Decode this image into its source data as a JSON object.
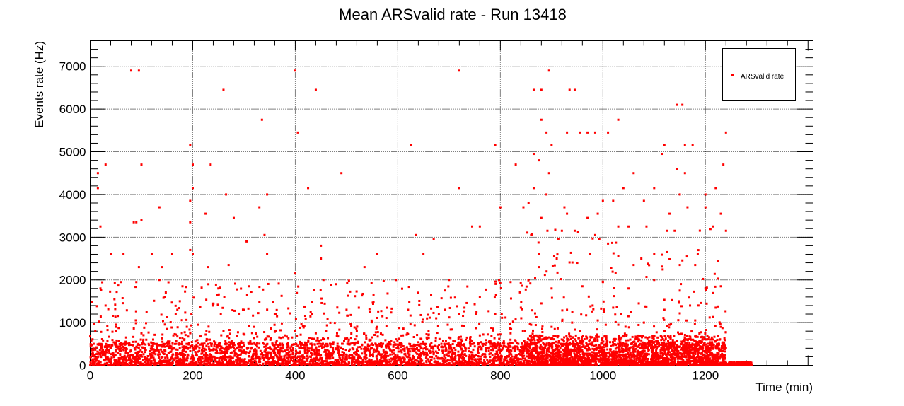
{
  "chart_data": {
    "type": "scatter",
    "title": "Mean ARSvalid rate - Run 13418",
    "xlabel": "Time (min)",
    "ylabel": "Events rate (Hz)",
    "xlim": [
      0,
      1410
    ],
    "ylim": [
      0,
      7600
    ],
    "x_ticks": [
      0,
      200,
      400,
      600,
      800,
      1000,
      1200
    ],
    "y_ticks": [
      0,
      1000,
      2000,
      3000,
      4000,
      5000,
      6000,
      7000
    ],
    "x_tick_labels": [
      "0",
      "200",
      "400",
      "600",
      "800",
      "1000",
      "1200"
    ],
    "y_tick_labels": [
      "0",
      "1000",
      "2000",
      "3000",
      "4000",
      "5000",
      "6000",
      "7000"
    ],
    "grid": true,
    "legend_position": "top-right",
    "series": [
      {
        "name": "ARSvalid rate",
        "color": "#ff0000",
        "marker": "square",
        "points": [
          [
            80,
            6900
          ],
          [
            95,
            6900
          ],
          [
            400,
            6900
          ],
          [
            720,
            6900
          ],
          [
            895,
            6900
          ],
          [
            260,
            6450
          ],
          [
            440,
            6450
          ],
          [
            865,
            6450
          ],
          [
            880,
            6450
          ],
          [
            935,
            6450
          ],
          [
            945,
            6450
          ],
          [
            1145,
            6100
          ],
          [
            1155,
            6100
          ],
          [
            335,
            5750
          ],
          [
            1030,
            5750
          ],
          [
            880,
            5750
          ],
          [
            405,
            5450
          ],
          [
            890,
            5450
          ],
          [
            930,
            5450
          ],
          [
            955,
            5450
          ],
          [
            970,
            5450
          ],
          [
            985,
            5450
          ],
          [
            1010,
            5450
          ],
          [
            1240,
            5450
          ],
          [
            195,
            5150
          ],
          [
            625,
            5150
          ],
          [
            790,
            5150
          ],
          [
            900,
            5150
          ],
          [
            1120,
            5150
          ],
          [
            1160,
            5150
          ],
          [
            1175,
            5150
          ],
          [
            15,
            4500
          ],
          [
            30,
            4700
          ],
          [
            100,
            4700
          ],
          [
            200,
            4700
          ],
          [
            235,
            4700
          ],
          [
            490,
            4500
          ],
          [
            830,
            4700
          ],
          [
            865,
            4950
          ],
          [
            875,
            4800
          ],
          [
            895,
            4500
          ],
          [
            1115,
            4950
          ],
          [
            1145,
            4600
          ],
          [
            1160,
            4500
          ],
          [
            1235,
            4700
          ],
          [
            15,
            4150
          ],
          [
            200,
            4150
          ],
          [
            265,
            4000
          ],
          [
            345,
            4000
          ],
          [
            425,
            4150
          ],
          [
            720,
            4150
          ],
          [
            865,
            4150
          ],
          [
            890,
            4000
          ],
          [
            1000,
            3850
          ],
          [
            1020,
            3850
          ],
          [
            1040,
            4150
          ],
          [
            1060,
            4500
          ],
          [
            1100,
            4150
          ],
          [
            1150,
            4000
          ],
          [
            1200,
            4000
          ],
          [
            1220,
            4150
          ],
          [
            135,
            3700
          ],
          [
            195,
            3850
          ],
          [
            225,
            3550
          ],
          [
            280,
            3450
          ],
          [
            330,
            3700
          ],
          [
            800,
            3700
          ],
          [
            845,
            3700
          ],
          [
            855,
            3800
          ],
          [
            880,
            3450
          ],
          [
            925,
            3700
          ],
          [
            930,
            3550
          ],
          [
            970,
            3450
          ],
          [
            990,
            3550
          ],
          [
            1030,
            3250
          ],
          [
            1080,
            3850
          ],
          [
            1130,
            3550
          ],
          [
            1165,
            3700
          ],
          [
            1200,
            3700
          ],
          [
            1230,
            3550
          ],
          [
            20,
            3250
          ],
          [
            85,
            3350
          ],
          [
            90,
            3350
          ],
          [
            100,
            3400
          ],
          [
            195,
            3350
          ],
          [
            340,
            3050
          ],
          [
            635,
            3050
          ],
          [
            670,
            2950
          ],
          [
            745,
            3250
          ],
          [
            760,
            3250
          ],
          [
            860,
            3050
          ],
          [
            920,
            3150
          ],
          [
            945,
            3150
          ],
          [
            985,
            3050
          ],
          [
            1050,
            3250
          ],
          [
            1085,
            3250
          ],
          [
            1125,
            3150
          ],
          [
            1140,
            3150
          ],
          [
            1215,
            3250
          ],
          [
            1240,
            3150
          ],
          [
            40,
            2600
          ],
          [
            65,
            2600
          ],
          [
            120,
            2600
          ],
          [
            160,
            2600
          ],
          [
            195,
            2700
          ],
          [
            200,
            2600
          ],
          [
            305,
            2900
          ],
          [
            345,
            2600
          ],
          [
            450,
            2800
          ],
          [
            560,
            2600
          ],
          [
            650,
            2600
          ],
          [
            875,
            2600
          ],
          [
            905,
            2550
          ],
          [
            975,
            2600
          ],
          [
            1010,
            2850
          ],
          [
            1030,
            2550
          ],
          [
            1075,
            2500
          ],
          [
            1100,
            2600
          ],
          [
            1125,
            2650
          ],
          [
            1185,
            2600
          ],
          [
            95,
            2300
          ],
          [
            140,
            2300
          ],
          [
            230,
            2300
          ],
          [
            270,
            2350
          ],
          [
            450,
            2500
          ],
          [
            535,
            2300
          ],
          [
            875,
            2300
          ],
          [
            910,
            2500
          ],
          [
            950,
            2400
          ],
          [
            1060,
            2350
          ],
          [
            1150,
            2350
          ],
          [
            1180,
            2350
          ],
          [
            1225,
            2450
          ],
          [
            20,
            1800
          ],
          [
            60,
            1950
          ],
          [
            90,
            1950
          ],
          [
            135,
            2000
          ],
          [
            180,
            1850
          ],
          [
            250,
            1800
          ],
          [
            310,
            1850
          ],
          [
            400,
            2150
          ],
          [
            455,
            2000
          ],
          [
            480,
            1900
          ],
          [
            640,
            1700
          ],
          [
            700,
            2000
          ],
          [
            760,
            1600
          ],
          [
            820,
            1950
          ],
          [
            900,
            1800
          ],
          [
            960,
            1850
          ],
          [
            1000,
            1950
          ],
          [
            1050,
            1800
          ],
          [
            1100,
            2000
          ],
          [
            1150,
            1750
          ],
          [
            1200,
            1800
          ],
          [
            1230,
            1850
          ],
          [
            30,
            1400
          ],
          [
            110,
            1250
          ],
          [
            170,
            1300
          ],
          [
            240,
            1400
          ],
          [
            300,
            1300
          ],
          [
            360,
            1200
          ],
          [
            430,
            1250
          ],
          [
            500,
            1300
          ],
          [
            570,
            1150
          ],
          [
            620,
            1300
          ],
          [
            680,
            1200
          ],
          [
            730,
            1350
          ],
          [
            790,
            1200
          ],
          [
            840,
            1350
          ],
          [
            880,
            1450
          ],
          [
            930,
            1300
          ],
          [
            980,
            1400
          ],
          [
            1020,
            1350
          ],
          [
            1070,
            1450
          ],
          [
            1120,
            1300
          ],
          [
            1170,
            1400
          ],
          [
            1220,
            1350
          ],
          [
            10,
            800
          ],
          [
            50,
            900
          ],
          [
            100,
            750
          ],
          [
            150,
            850
          ],
          [
            210,
            950
          ],
          [
            260,
            800
          ],
          [
            320,
            900
          ],
          [
            380,
            700
          ],
          [
            440,
            750
          ],
          [
            520,
            800
          ],
          [
            560,
            900
          ],
          [
            610,
            700
          ],
          [
            660,
            800
          ],
          [
            700,
            650
          ],
          [
            760,
            700
          ],
          [
            820,
            750
          ],
          [
            860,
            950
          ],
          [
            900,
            900
          ],
          [
            940,
            1000
          ],
          [
            990,
            1050
          ],
          [
            1030,
            950
          ],
          [
            1080,
            1000
          ],
          [
            1130,
            950
          ],
          [
            1180,
            1050
          ],
          [
            1230,
            900
          ],
          [
            5,
            300
          ],
          [
            25,
            350
          ],
          [
            45,
            280
          ],
          [
            70,
            320
          ],
          [
            95,
            400
          ],
          [
            120,
            300
          ],
          [
            145,
            350
          ],
          [
            170,
            280
          ],
          [
            195,
            420
          ],
          [
            220,
            330
          ],
          [
            245,
            300
          ],
          [
            270,
            380
          ],
          [
            295,
            310
          ],
          [
            320,
            340
          ],
          [
            345,
            290
          ],
          [
            370,
            320
          ],
          [
            395,
            260
          ],
          [
            420,
            300
          ],
          [
            445,
            250
          ],
          [
            470,
            280
          ],
          [
            495,
            240
          ],
          [
            520,
            270
          ],
          [
            545,
            230
          ],
          [
            570,
            260
          ],
          [
            595,
            240
          ],
          [
            620,
            280
          ],
          [
            645,
            250
          ],
          [
            670,
            260
          ],
          [
            695,
            230
          ],
          [
            720,
            250
          ],
          [
            745,
            240
          ],
          [
            770,
            260
          ],
          [
            795,
            240
          ],
          [
            820,
            280
          ],
          [
            845,
            350
          ],
          [
            870,
            420
          ],
          [
            895,
            400
          ],
          [
            920,
            450
          ],
          [
            945,
            430
          ],
          [
            970,
            460
          ],
          [
            995,
            440
          ],
          [
            1020,
            470
          ],
          [
            1045,
            430
          ],
          [
            1070,
            450
          ],
          [
            1095,
            420
          ],
          [
            1120,
            440
          ],
          [
            1145,
            410
          ],
          [
            1170,
            430
          ],
          [
            1195,
            400
          ],
          [
            1220,
            420
          ],
          [
            1250,
            50
          ],
          [
            1260,
            30
          ],
          [
            1270,
            60
          ],
          [
            1280,
            40
          ],
          [
            1290,
            20
          ]
        ],
        "dense_bands": [
          {
            "x_range": [
              0,
              1240
            ],
            "base_y_max": 500
          },
          {
            "x_range": [
              850,
              1240
            ],
            "base_y_max": 700
          },
          {
            "x_range": [
              1240,
              1290
            ],
            "base_y_max": 80
          }
        ]
      }
    ]
  }
}
